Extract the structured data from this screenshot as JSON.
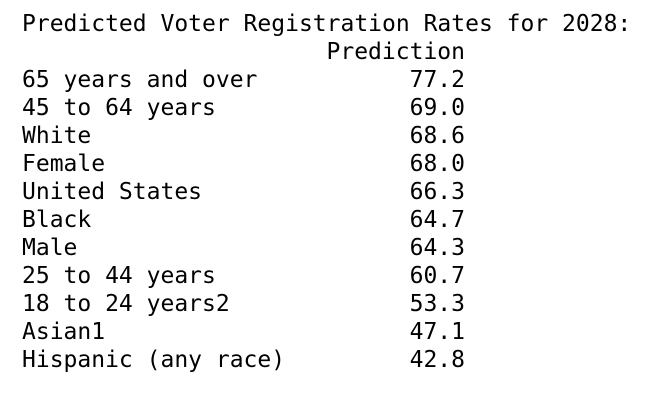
{
  "output": {
    "title": "Predicted Voter Registration Rates for 2028:",
    "column_header": "Prediction",
    "rows": [
      {
        "label": "65 years and over",
        "value": "77.2"
      },
      {
        "label": "45 to 64 years",
        "value": "69.0"
      },
      {
        "label": "White",
        "value": "68.6"
      },
      {
        "label": "Female",
        "value": "68.0"
      },
      {
        "label": "United States",
        "value": "66.3"
      },
      {
        "label": "Black",
        "value": "64.7"
      },
      {
        "label": "Male",
        "value": "64.3"
      },
      {
        "label": "25 to 44 years",
        "value": "60.7"
      },
      {
        "label": "18 to 24 years2",
        "value": "53.3"
      },
      {
        "label": "Asian1",
        "value": "47.1"
      },
      {
        "label": "Hispanic (any race)",
        "value": "42.8"
      }
    ]
  }
}
